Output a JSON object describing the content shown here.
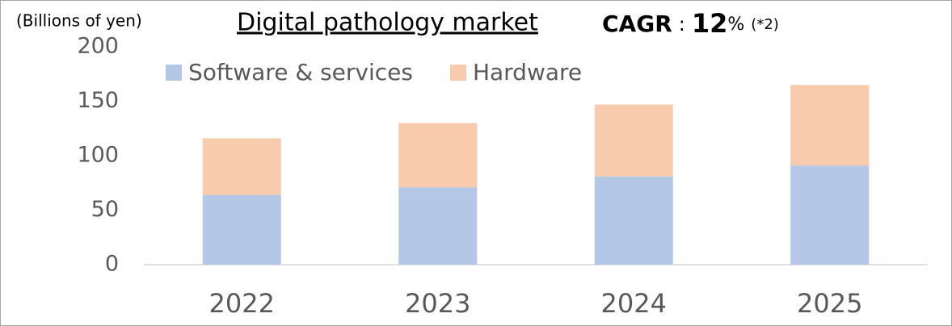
{
  "chart_data": {
    "type": "stacked-bar",
    "title": "Digital pathology market",
    "annotation": {
      "label": "CAGR",
      "separator": ":",
      "value": "12",
      "unit": "%",
      "note": "(*2)"
    },
    "y_label": "(Billions of yen)",
    "categories": [
      "2022",
      "2023",
      "2024",
      "2025"
    ],
    "series": [
      {
        "name": "Software & services",
        "color": "#b4c7e7",
        "values": [
          64,
          71,
          81,
          91
        ]
      },
      {
        "name": "Hardware",
        "color": "#f8cbad",
        "values": [
          52,
          59,
          66,
          74
        ]
      }
    ],
    "ylim": [
      0,
      200
    ],
    "yticks": [
      0,
      50,
      100,
      150,
      200
    ],
    "grid": false,
    "legend": "top-left"
  }
}
